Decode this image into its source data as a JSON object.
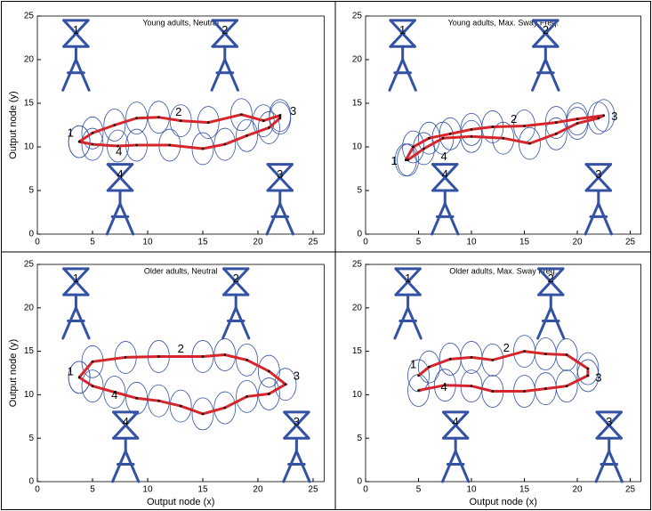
{
  "chart_data": [
    {
      "type": "line",
      "title": "Young adults, Neutral",
      "ylabel": "Output node (y)",
      "xlim": [
        0,
        26
      ],
      "ylim": [
        0,
        25
      ],
      "xticks": [
        0,
        5,
        10,
        15,
        20,
        25
      ],
      "yticks": [
        0,
        5,
        10,
        15,
        20,
        25
      ],
      "series": [
        {
          "color": "#d7262b",
          "x": [
            3.8,
            5,
            7,
            9,
            11,
            13,
            15.5,
            18.5,
            20.5,
            22,
            22,
            21,
            19,
            17,
            15,
            12,
            9,
            7.3,
            5,
            3.8
          ],
          "values": [
            10.6,
            11.6,
            12.5,
            13.3,
            13.4,
            13.0,
            12.8,
            13.7,
            13.0,
            13.6,
            13.3,
            12.2,
            11.3,
            10.3,
            9.8,
            10.2,
            10.2,
            10.1,
            10.3,
            10.6
          ]
        }
      ],
      "annotations": [
        {
          "text": "1",
          "x": 3,
          "y": 11.5
        },
        {
          "text": "2",
          "x": 12.8,
          "y": 13.9
        },
        {
          "text": "3",
          "x": 23.2,
          "y": 14
        },
        {
          "text": "4",
          "x": 7.4,
          "y": 9.4
        }
      ],
      "figures": [
        {
          "label": "1",
          "x": 3.5,
          "y": 16.5
        },
        {
          "label": "2",
          "x": 17,
          "y": 16.5
        },
        {
          "label": "4",
          "x": 7.5,
          "y": 0
        },
        {
          "label": "3",
          "x": 22,
          "y": 0
        }
      ]
    },
    {
      "type": "line",
      "title": "Young adults, Max. Sway Freq.",
      "xlim": [
        0,
        26
      ],
      "ylim": [
        0,
        25
      ],
      "xticks": [
        0,
        5,
        10,
        15,
        20,
        25
      ],
      "yticks": [
        0,
        5,
        10,
        15,
        20,
        25
      ],
      "series": [
        {
          "color": "#d7262b",
          "x": [
            3.8,
            4.5,
            6,
            8,
            10,
            12,
            15,
            18,
            20,
            22.5,
            22,
            20,
            18,
            15.5,
            13,
            10,
            7.3,
            5.5,
            4
          ],
          "values": [
            8.5,
            10,
            11,
            11.5,
            12,
            12.3,
            12.4,
            12.8,
            13.2,
            13.6,
            13.3,
            12.7,
            11.5,
            10.4,
            11.0,
            11.2,
            11.0,
            9.8,
            8.5
          ]
        }
      ],
      "annotations": [
        {
          "text": "1",
          "x": 2.7,
          "y": 8.3
        },
        {
          "text": "2",
          "x": 14,
          "y": 13.1
        },
        {
          "text": "3",
          "x": 23.5,
          "y": 13.4
        },
        {
          "text": "4",
          "x": 7.4,
          "y": 8.8
        }
      ],
      "figures": [
        {
          "label": "1",
          "x": 3.5,
          "y": 16.5
        },
        {
          "label": "2",
          "x": 17,
          "y": 16.5
        },
        {
          "label": "4",
          "x": 7.5,
          "y": 0
        },
        {
          "label": "3",
          "x": 22,
          "y": 0
        }
      ]
    },
    {
      "type": "line",
      "title": "Older adults, Neutral",
      "xlabel": "Output node (x)",
      "ylabel": "Output node (y)",
      "xlim": [
        0,
        26
      ],
      "ylim": [
        0,
        25
      ],
      "xticks": [
        0,
        5,
        10,
        15,
        20,
        25
      ],
      "yticks": [
        0,
        5,
        10,
        15,
        20,
        25
      ],
      "series": [
        {
          "color": "#d7262b",
          "x": [
            3.8,
            5,
            8,
            11,
            15,
            17,
            19,
            21,
            22.5,
            21,
            19,
            17,
            15,
            13,
            11,
            9,
            7,
            5,
            3.8
          ],
          "values": [
            12,
            13.8,
            14.3,
            14.4,
            14.4,
            14.6,
            14.0,
            12.7,
            11.2,
            10.1,
            9.8,
            8.5,
            7.8,
            8.7,
            9.3,
            9.6,
            10.3,
            11.0,
            12
          ]
        }
      ],
      "annotations": [
        {
          "text": "1",
          "x": 3,
          "y": 12.6
        },
        {
          "text": "2",
          "x": 13,
          "y": 15.2
        },
        {
          "text": "3",
          "x": 23.5,
          "y": 12.1
        },
        {
          "text": "4",
          "x": 7,
          "y": 9.9
        }
      ],
      "figures": [
        {
          "label": "1",
          "x": 3.5,
          "y": 16.5
        },
        {
          "label": "2",
          "x": 18,
          "y": 16.5
        },
        {
          "label": "4",
          "x": 8,
          "y": 0
        },
        {
          "label": "3",
          "x": 23.5,
          "y": 0
        }
      ]
    },
    {
      "type": "line",
      "title": "Older adults, Max. Sway Freq.",
      "xlabel": "Output node (x)",
      "xlim": [
        0,
        26
      ],
      "ylim": [
        0,
        25
      ],
      "xticks": [
        0,
        5,
        10,
        15,
        20,
        25
      ],
      "yticks": [
        0,
        5,
        10,
        15,
        20,
        25
      ],
      "series": [
        {
          "color": "#d7262b",
          "x": [
            5,
            6,
            8,
            10,
            12,
            15,
            17,
            19,
            21,
            21,
            19,
            17,
            15,
            12,
            10,
            7.5,
            5
          ],
          "values": [
            12.2,
            13.2,
            14.1,
            14.3,
            14.0,
            15.0,
            14.7,
            14.6,
            13.0,
            12.2,
            11.0,
            10.7,
            10.4,
            10.4,
            11.0,
            11.1,
            10.5
          ]
        }
      ],
      "annotations": [
        {
          "text": "1",
          "x": 4.5,
          "y": 13.4
        },
        {
          "text": "2",
          "x": 13.3,
          "y": 15.3
        },
        {
          "text": "3",
          "x": 22,
          "y": 11.9
        },
        {
          "text": "4",
          "x": 7.4,
          "y": 10.8
        }
      ],
      "figures": [
        {
          "label": "1",
          "x": 4,
          "y": 16.5
        },
        {
          "label": "2",
          "x": 17.5,
          "y": 16.5
        },
        {
          "label": "4",
          "x": 8.5,
          "y": 0
        },
        {
          "label": "3",
          "x": 23,
          "y": 0
        }
      ]
    }
  ]
}
